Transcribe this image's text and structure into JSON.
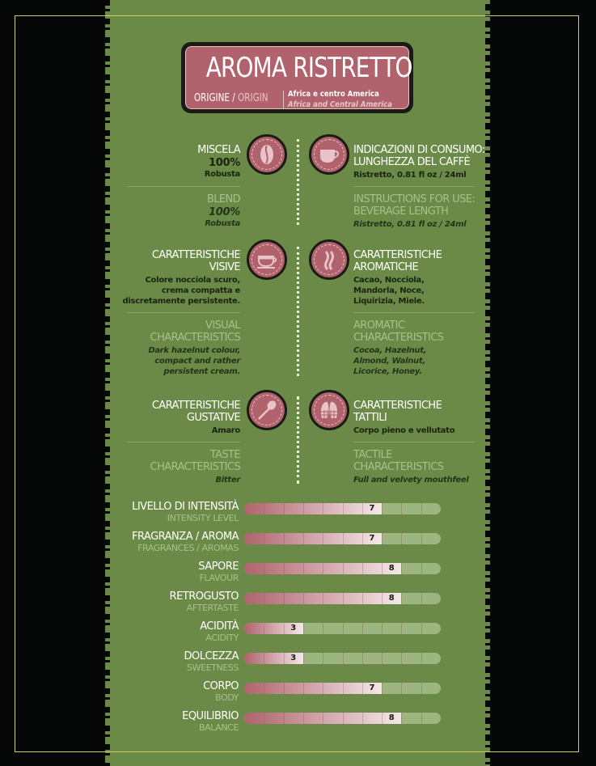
{
  "header": {
    "title": "AROMA RISTRETTO",
    "origin_label_it": "ORIGINE",
    "origin_sep": " / ",
    "origin_label_en": "ORIGIN",
    "origin_value_it": "Africa e centro America",
    "origin_value_en": "Africa and Central America"
  },
  "colors": {
    "panel": "#6b8a47",
    "accent": "#b0636d",
    "background": "#050806",
    "frame": "#cfcf6a"
  },
  "features": [
    {
      "side": "left",
      "icon": "coffee-bean-icon",
      "title_it": [
        "MISCELA"
      ],
      "value_it": [
        "100%",
        "Robusta"
      ],
      "title_en": [
        "BLEND"
      ],
      "value_en": [
        "100%",
        "Robusta"
      ]
    },
    {
      "side": "right",
      "icon": "coffee-cup-icon",
      "title_it": [
        "INDICAZIONI DI CONSUMO:",
        "LUNGHEZZA DEL CAFFÈ"
      ],
      "value_it": [
        "Ristretto, 0.81 fl oz / 24ml"
      ],
      "title_en": [
        "INSTRUCTIONS FOR USE:",
        "BEVERAGE LENGTH"
      ],
      "value_en": [
        "Ristretto, 0.81 fl oz / 24ml"
      ]
    },
    {
      "side": "left",
      "icon": "espresso-cup-icon",
      "title_it": [
        "CARATTERISTICHE",
        "VISIVE"
      ],
      "value_it": [
        "Colore nocciola scuro,",
        "crema compatta e",
        "discretamente persistente."
      ],
      "title_en": [
        "VISUAL",
        "CHARACTERISTICS"
      ],
      "value_en": [
        "Dark hazelnut colour,",
        "compact and rather",
        "persistent cream."
      ]
    },
    {
      "side": "right",
      "icon": "aroma-icon",
      "title_it": [
        "CARATTERISTICHE",
        "AROMATICHE"
      ],
      "value_it": [
        "Cacao, Nocciola,",
        "Mandorla, Noce,",
        "Liquirizia, Miele."
      ],
      "title_en": [
        "AROMATIC",
        "CHARACTERISTICS"
      ],
      "value_en": [
        "Cocoa, Hazelnut,",
        "Almond, Walnut,",
        "Licorice, Honey."
      ]
    },
    {
      "side": "left",
      "icon": "spoon-icon",
      "title_it": [
        "CARATTERISTICHE",
        "GUSTATIVE"
      ],
      "value_it": [
        "Amaro"
      ],
      "title_en": [
        "TASTE",
        "CHARACTERISTICS"
      ],
      "value_en": [
        "Bitter"
      ]
    },
    {
      "side": "right",
      "icon": "fingerprint-icon",
      "title_it": [
        "CARATTERISTICHE",
        "TATTILI"
      ],
      "value_it": [
        "Corpo pieno e vellutato"
      ],
      "title_en": [
        "TACTILE",
        "CHARACTERISTICS"
      ],
      "value_en": [
        "Full and velvety mouthfeel"
      ]
    }
  ],
  "ratings": {
    "max": 10,
    "items": [
      {
        "label_it": "LIVELLO DI INTENSITÀ",
        "label_en": "INTENSITY LEVEL",
        "value": 7
      },
      {
        "label_it": "FRAGRANZA / AROMA",
        "label_en": "FRAGRANCES / AROMAS",
        "value": 7
      },
      {
        "label_it": "SAPORE",
        "label_en": "FLAVOUR",
        "value": 8
      },
      {
        "label_it": "RETROGUSTO",
        "label_en": "AFTERTASTE",
        "value": 8
      },
      {
        "label_it": "ACIDITÀ",
        "label_en": "ACIDITY",
        "value": 3
      },
      {
        "label_it": "DOLCEZZA",
        "label_en": "SWEETNESS",
        "value": 3
      },
      {
        "label_it": "CORPO",
        "label_en": "BODY",
        "value": 7
      },
      {
        "label_it": "EQUILIBRIO",
        "label_en": "BALANCE",
        "value": 8
      }
    ]
  }
}
